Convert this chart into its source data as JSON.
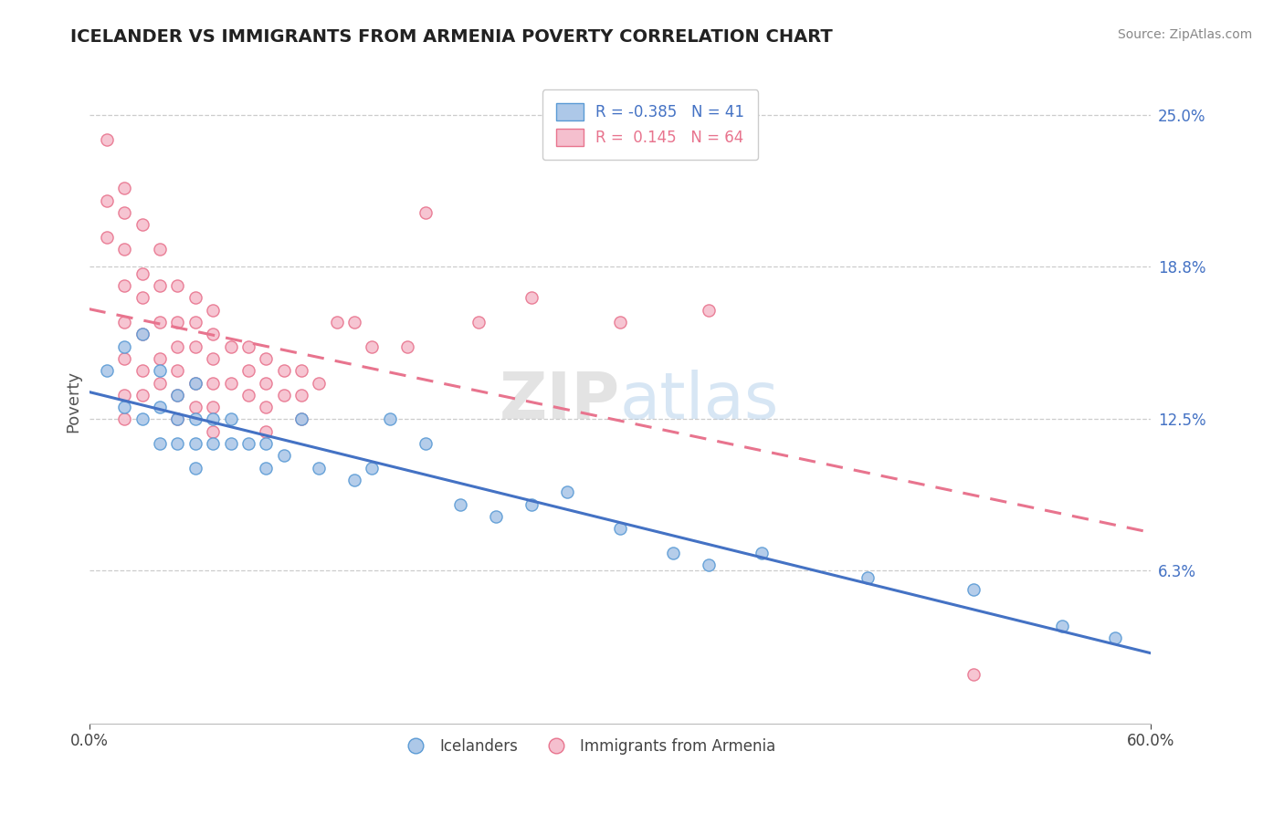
{
  "title": "ICELANDER VS IMMIGRANTS FROM ARMENIA POVERTY CORRELATION CHART",
  "source": "Source: ZipAtlas.com",
  "ylabel": "Poverty",
  "xlim": [
    0.0,
    0.6
  ],
  "ylim": [
    0.0,
    0.265
  ],
  "icelander_color": "#adc8e8",
  "armenia_color": "#f5bfce",
  "icelander_edge_color": "#5b9bd5",
  "armenia_edge_color": "#e8748e",
  "icelander_line_color": "#4472c4",
  "armenia_line_color": "#e8748e",
  "y_tick_vals": [
    0.063,
    0.125,
    0.188,
    0.25
  ],
  "y_tick_labels": [
    "6.3%",
    "12.5%",
    "18.8%",
    "25.0%"
  ],
  "icelander_R": -0.385,
  "icelander_N": 41,
  "armenia_R": 0.145,
  "armenia_N": 64,
  "icelander_scatter_x": [
    0.01,
    0.02,
    0.02,
    0.03,
    0.03,
    0.04,
    0.04,
    0.04,
    0.05,
    0.05,
    0.05,
    0.06,
    0.06,
    0.06,
    0.06,
    0.07,
    0.07,
    0.08,
    0.08,
    0.09,
    0.1,
    0.1,
    0.11,
    0.12,
    0.13,
    0.15,
    0.16,
    0.17,
    0.19,
    0.21,
    0.23,
    0.25,
    0.27,
    0.3,
    0.33,
    0.35,
    0.38,
    0.44,
    0.5,
    0.55,
    0.58
  ],
  "icelander_scatter_y": [
    0.145,
    0.155,
    0.13,
    0.16,
    0.125,
    0.145,
    0.13,
    0.115,
    0.135,
    0.125,
    0.115,
    0.14,
    0.125,
    0.115,
    0.105,
    0.125,
    0.115,
    0.125,
    0.115,
    0.115,
    0.115,
    0.105,
    0.11,
    0.125,
    0.105,
    0.1,
    0.105,
    0.125,
    0.115,
    0.09,
    0.085,
    0.09,
    0.095,
    0.08,
    0.07,
    0.065,
    0.07,
    0.06,
    0.055,
    0.04,
    0.035
  ],
  "armenia_scatter_x": [
    0.01,
    0.01,
    0.01,
    0.02,
    0.02,
    0.02,
    0.02,
    0.02,
    0.02,
    0.02,
    0.02,
    0.03,
    0.03,
    0.03,
    0.03,
    0.03,
    0.03,
    0.04,
    0.04,
    0.04,
    0.04,
    0.04,
    0.05,
    0.05,
    0.05,
    0.05,
    0.05,
    0.05,
    0.06,
    0.06,
    0.06,
    0.06,
    0.06,
    0.07,
    0.07,
    0.07,
    0.07,
    0.07,
    0.07,
    0.08,
    0.08,
    0.09,
    0.09,
    0.09,
    0.1,
    0.1,
    0.1,
    0.1,
    0.11,
    0.11,
    0.12,
    0.12,
    0.12,
    0.13,
    0.14,
    0.15,
    0.16,
    0.18,
    0.19,
    0.22,
    0.25,
    0.3,
    0.35,
    0.5
  ],
  "armenia_scatter_y": [
    0.24,
    0.215,
    0.2,
    0.22,
    0.21,
    0.195,
    0.18,
    0.165,
    0.15,
    0.135,
    0.125,
    0.205,
    0.185,
    0.175,
    0.16,
    0.145,
    0.135,
    0.195,
    0.18,
    0.165,
    0.15,
    0.14,
    0.18,
    0.165,
    0.155,
    0.145,
    0.135,
    0.125,
    0.175,
    0.165,
    0.155,
    0.14,
    0.13,
    0.17,
    0.16,
    0.15,
    0.14,
    0.13,
    0.12,
    0.155,
    0.14,
    0.155,
    0.145,
    0.135,
    0.15,
    0.14,
    0.13,
    0.12,
    0.145,
    0.135,
    0.145,
    0.135,
    0.125,
    0.14,
    0.165,
    0.165,
    0.155,
    0.155,
    0.21,
    0.165,
    0.175,
    0.165,
    0.17,
    0.02
  ]
}
